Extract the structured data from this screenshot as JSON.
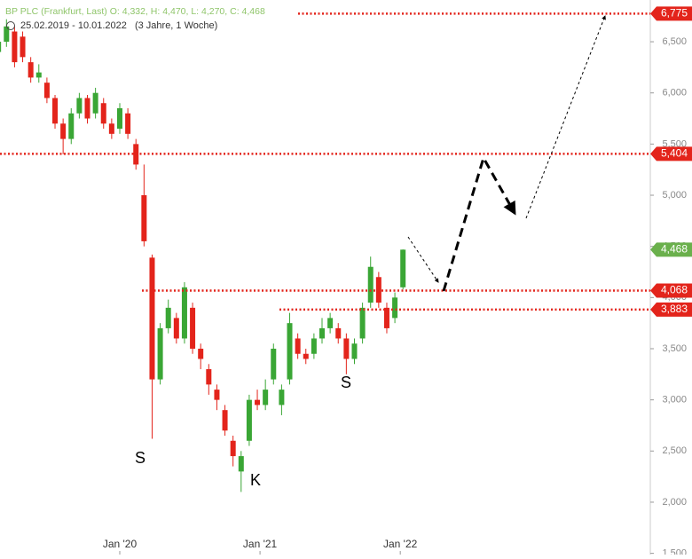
{
  "chart_data": {
    "type": "candlestick",
    "title": "BP PLC (Frankfurt, Last)",
    "ohlc_text": "O: 4,332, H: 4,470, L: 4,270, C: 4,468",
    "subtitle": "25.02.2019 - 10.01.2022",
    "period": "(3 Jahre, 1 Woche)",
    "up_color": "#3aa635",
    "down_color": "#e3241b",
    "x": [
      0,
      3,
      6,
      9,
      12,
      15,
      18,
      21,
      24,
      27,
      30,
      33,
      36,
      39,
      42,
      45,
      48,
      51,
      54,
      57,
      60,
      63,
      66,
      69,
      72,
      75,
      78,
      81,
      84,
      87,
      90,
      93,
      96,
      99,
      102,
      105,
      108,
      111,
      114,
      117,
      120,
      123,
      126,
      129,
      132,
      135,
      138,
      141,
      144,
      147,
      150
    ],
    "open": [
      6400,
      6500,
      6600,
      6550,
      6300,
      6150,
      6100,
      5950,
      5700,
      5550,
      5800,
      5950,
      5800,
      5900,
      5700,
      5650,
      5800,
      5500,
      5000,
      4390,
      3200,
      3700,
      3800,
      3600,
      3900,
      3500,
      3300,
      3100,
      2900,
      2600,
      2300,
      2600,
      3000,
      2950,
      3200,
      2950,
      3200,
      3600,
      3450,
      3450,
      3600,
      3700,
      3700,
      3600,
      3400,
      3600,
      3950,
      4200,
      3900,
      3800,
      4100
    ],
    "high": [
      6580,
      6720,
      6650,
      6600,
      6350,
      6280,
      6150,
      5980,
      5750,
      5850,
      6000,
      5980,
      6050,
      5950,
      5750,
      5900,
      5850,
      5550,
      5300,
      4420,
      3750,
      3980,
      3850,
      4150,
      3950,
      3550,
      3350,
      3150,
      2950,
      2650,
      2500,
      3050,
      3100,
      3200,
      3550,
      3150,
      3850,
      3650,
      3500,
      3650,
      3800,
      3850,
      3750,
      3650,
      3600,
      3950,
      4400,
      4250,
      3950,
      4050,
      4470
    ],
    "low": [
      6300,
      6450,
      6250,
      6300,
      6100,
      6100,
      5900,
      5650,
      5400,
      5500,
      5750,
      5700,
      5750,
      5650,
      5550,
      5600,
      5550,
      5250,
      4500,
      2620,
      3150,
      3650,
      3550,
      3550,
      3450,
      3300,
      3050,
      2900,
      2650,
      2350,
      2100,
      2550,
      2900,
      2900,
      3150,
      2850,
      3150,
      3400,
      3350,
      3400,
      3550,
      3650,
      3550,
      3250,
      3350,
      3550,
      3900,
      3900,
      3650,
      3750,
      4080
    ],
    "close": [
      6500,
      6650,
      6300,
      6350,
      6150,
      6200,
      5950,
      5700,
      5550,
      5800,
      5950,
      5750,
      6000,
      5700,
      5600,
      5850,
      5600,
      5300,
      4550,
      3200,
      3700,
      3900,
      3600,
      4100,
      3500,
      3400,
      3150,
      3000,
      2700,
      2450,
      2450,
      3000,
      2950,
      3100,
      3500,
      3100,
      3750,
      3450,
      3400,
      3600,
      3700,
      3800,
      3600,
      3400,
      3550,
      3900,
      4300,
      3950,
      3700,
      4000,
      4468
    ],
    "xlim": [
      0.6,
      241.7
    ],
    "xticks": [
      {
        "value": 45,
        "label": "Jan '20"
      },
      {
        "value": 97,
        "label": "Jan '21"
      },
      {
        "value": 149,
        "label": "Jan '22"
      }
    ],
    "ylim": [
      1488,
      6908
    ],
    "yticks": [
      {
        "value": 1500,
        "label": "1,500"
      },
      {
        "value": 2000,
        "label": "2,000"
      },
      {
        "value": 2500,
        "label": "2,500"
      },
      {
        "value": 3000,
        "label": "3,000"
      },
      {
        "value": 3500,
        "label": "3,500"
      },
      {
        "value": 4000,
        "label": "4,000"
      },
      {
        "value": 4500,
        "label": "4,500"
      },
      {
        "value": 5000,
        "label": "5,000"
      },
      {
        "value": 5500,
        "label": "5,500"
      },
      {
        "value": 6000,
        "label": "6,000"
      },
      {
        "value": 6500,
        "label": "6,500"
      }
    ],
    "levels": [
      {
        "value": 6775,
        "label": "6,775",
        "color": "#e3241b"
      },
      {
        "value": 5404,
        "label": "5,404",
        "color": "#e3241b"
      },
      {
        "value": 4068,
        "label": "4,068",
        "color": "#e3241b"
      },
      {
        "value": 3883,
        "label": "3,883",
        "color": "#e3241b"
      }
    ],
    "last_price": {
      "value": 4468,
      "label": "4,468",
      "color": "#6ab04c"
    },
    "annotations": [
      "S",
      "K",
      "S"
    ]
  }
}
